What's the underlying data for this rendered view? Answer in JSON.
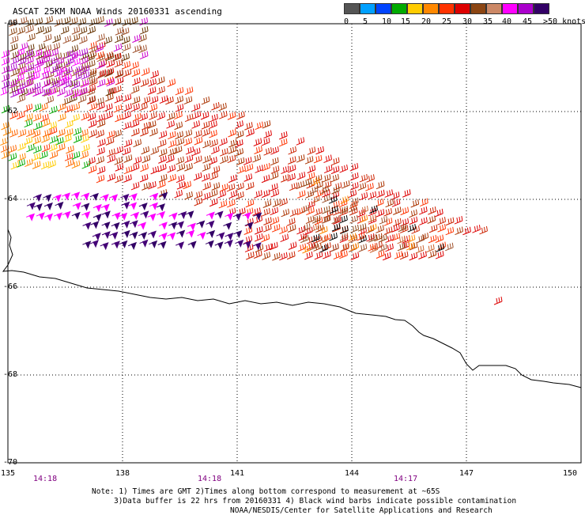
{
  "title": "ASCAT 25KM NOAA Winds 20160331 ascending",
  "legend": {
    "colors": [
      "#555555",
      "#00a0ff",
      "#0044ff",
      "#00aa00",
      "#ffcc00",
      "#ff8800",
      "#ff3300",
      "#dd0000",
      "#8b4513",
      "#cc8866",
      "#ff00ff",
      "#aa00cc",
      "#330066"
    ],
    "labels": [
      "0",
      "5",
      "10",
      "15",
      "20",
      "25",
      "30",
      "35",
      "40",
      "45",
      ">50 knots"
    ]
  },
  "axes": {
    "x_labels": [
      "135",
      "138",
      "141",
      "144",
      "147",
      "150"
    ],
    "x_values": [
      135,
      138,
      141,
      144,
      147,
      150
    ],
    "y_labels": [
      "-60",
      "-62",
      "-64",
      "-66",
      "-68",
      "-70"
    ],
    "y_values": [
      -60,
      -62,
      -64,
      -66,
      -68,
      -70
    ]
  },
  "times": [
    "14:18",
    "14:18",
    "14:17"
  ],
  "notes": {
    "line1": "Note: 1) Times are GMT 2)Times along bottom correspond to measurement at ~65S",
    "line2": "3)Data buffer is 22 hrs from 20160331 4) Black wind barbs indicate possible contamination",
    "line3": "NOAA/NESDIS/Center for Satellite Applications and Research"
  }
}
